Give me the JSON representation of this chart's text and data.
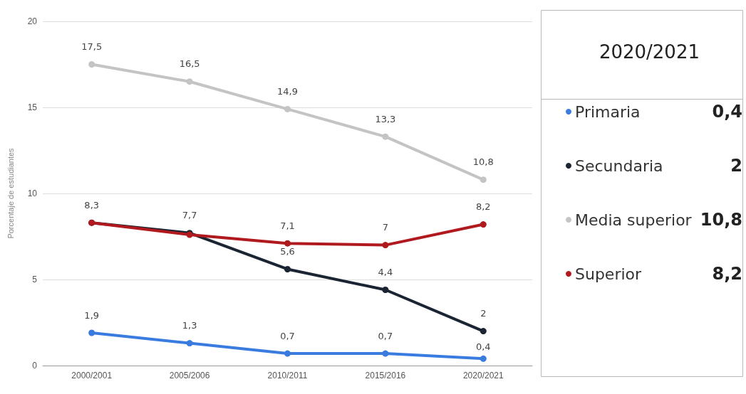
{
  "chart_data": {
    "type": "line",
    "ylabel": "Porcentaje de estudiantes",
    "legend_title": "2020/2021",
    "categories": [
      "2000/2001",
      "2005/2006",
      "2010/2011",
      "2015/2016",
      "2020/2021"
    ],
    "series": [
      {
        "name": "Primaria",
        "color": "#3a7be0",
        "values": [
          1.9,
          1.3,
          0.7,
          0.7,
          0.4
        ],
        "value_labels": [
          "1,9",
          "1,3",
          "0,7",
          "0,7",
          "0,4"
        ]
      },
      {
        "name": "Secundaria",
        "color": "#1a2433",
        "values": [
          8.3,
          7.7,
          5.6,
          4.4,
          2
        ],
        "value_labels": [
          null,
          "7,7",
          "5,6",
          "4,4",
          "2"
        ]
      },
      {
        "name": "Media superior",
        "color": "#c4c4c4",
        "values": [
          17.5,
          16.5,
          14.9,
          13.3,
          10.8
        ],
        "value_labels": [
          "17,5",
          "16,5",
          "14,9",
          "13,3",
          "10,8"
        ]
      },
      {
        "name": "Superior",
        "color": "#b0191e",
        "values": [
          8.3,
          7.6,
          7.1,
          7,
          8.2
        ],
        "value_labels": [
          "8,3",
          null,
          "7,1",
          "7",
          "8,2"
        ]
      }
    ],
    "ylim": [
      0,
      20
    ],
    "yticks": [
      0,
      5,
      10,
      15,
      20
    ],
    "grid": "y",
    "legend": "right",
    "marker": "circle",
    "line_style": "solid"
  }
}
